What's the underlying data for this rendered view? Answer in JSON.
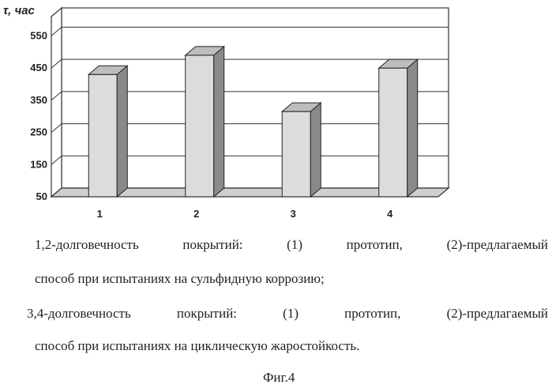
{
  "chart_data": {
    "type": "bar",
    "ylabel": "τ, час",
    "categories": [
      "1",
      "2",
      "3",
      "4"
    ],
    "values": [
      430,
      490,
      315,
      450
    ],
    "yticks": [
      50,
      150,
      250,
      350,
      450,
      550
    ],
    "ylim": [
      50,
      610
    ],
    "grid": true,
    "colors": {
      "bar_front": "#dcdcdc",
      "bar_side": "#8a8a8a",
      "bar_top": "#bdbdbd",
      "grid": "#333333"
    }
  },
  "captions": {
    "line1": "1,2-долговечность покрытий: (1) прототип, (2)-предлагаемый",
    "line2": "способ при испытаниях на сульфидную коррозию;",
    "line3": "3,4-долговечность покрытий: (1) прототип, (2)-предлагаемый",
    "line4": "способ при испытаниях на циклическую жаростойкость.",
    "figure": "Фиг.4"
  }
}
